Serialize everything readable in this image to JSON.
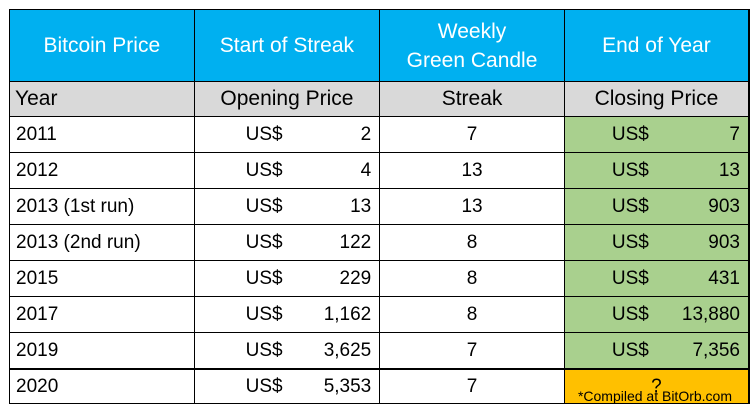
{
  "header": {
    "col1": "Bitcoin Price",
    "col2": "Start of Streak",
    "col3_line1": "Weekly",
    "col3_line2": "Green Candle",
    "col4": "End of Year"
  },
  "subheader": {
    "col1": "Year",
    "col2": "Opening Price",
    "col3": "Streak",
    "col4": "Closing Price"
  },
  "currency": "US$",
  "rows": [
    {
      "year": "2011",
      "opening": "2",
      "streak": "7",
      "closing": "7"
    },
    {
      "year": "2012",
      "opening": "4",
      "streak": "13",
      "closing": "13"
    },
    {
      "year": "2013 (1st run)",
      "opening": "13",
      "streak": "13",
      "closing": "903"
    },
    {
      "year": "2013 (2nd run)",
      "opening": "122",
      "streak": "8",
      "closing": "903"
    },
    {
      "year": "2015",
      "opening": "229",
      "streak": "8",
      "closing": "431"
    },
    {
      "year": "2017",
      "opening": "1,162",
      "streak": "8",
      "closing": "13,880"
    },
    {
      "year": "2019",
      "opening": "3,625",
      "streak": "7",
      "closing": "7,356"
    }
  ],
  "last_row": {
    "year": "2020",
    "opening": "5,353",
    "streak": "7",
    "closing": "?"
  },
  "colors": {
    "header_bg": "#00b0f0",
    "subheader_bg": "#d9d9d9",
    "closing_bg": "#a9d08e",
    "unknown_bg": "#ffc000"
  },
  "footnote": "*Compiled at BitOrb.com"
}
